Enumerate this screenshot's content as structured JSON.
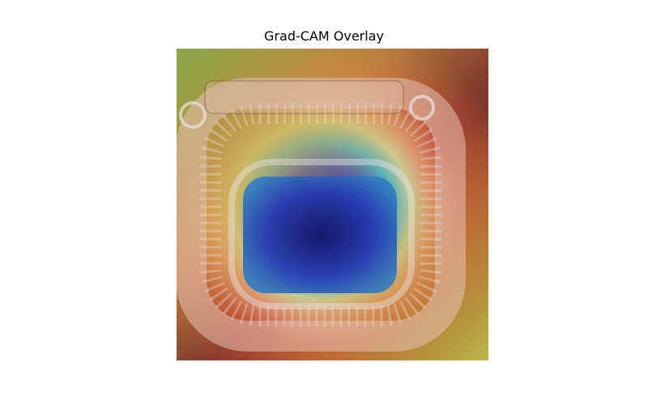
{
  "figure": {
    "title": "Grad-CAM Overlay",
    "image_subject": "aerial view of a stadium with heatmap overlay",
    "colormap": "jet",
    "colors": {
      "background": "#ffffff",
      "heat_low": "#1030c0",
      "heat_mid": "#40e0e0",
      "heat_high": "#e03a2a",
      "tint": "#7a2e2a"
    }
  }
}
